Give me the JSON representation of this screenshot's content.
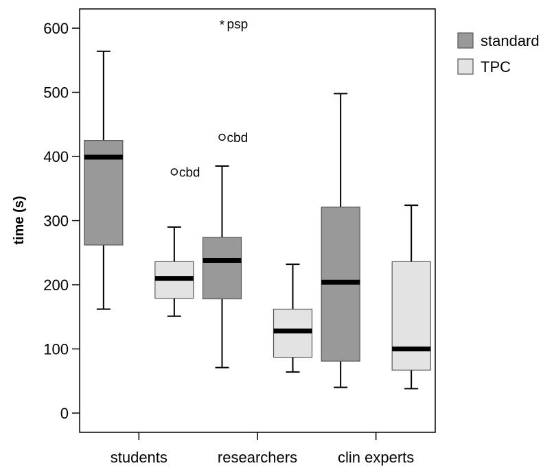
{
  "chart_data": {
    "type": "boxplot",
    "ylabel": "time (s)",
    "ylim": [
      -30,
      630
    ],
    "yticks": [
      0,
      100,
      200,
      300,
      400,
      500,
      600
    ],
    "categories": [
      "students",
      "researchers",
      "clin experts"
    ],
    "legend_position": "right",
    "series": [
      {
        "name": "standard",
        "color": "#999999",
        "boxes": [
          {
            "min": 162,
            "q1": 262,
            "median": 399,
            "q3": 425,
            "max": 564
          },
          {
            "min": 71,
            "q1": 178,
            "median": 238,
            "q3": 274,
            "max": 385
          },
          {
            "min": 40,
            "q1": 81,
            "median": 204,
            "q3": 321,
            "max": 498
          }
        ]
      },
      {
        "name": "TPC",
        "color": "#e3e3e3",
        "boxes": [
          {
            "min": 151,
            "q1": 179,
            "median": 210,
            "q3": 236,
            "max": 290
          },
          {
            "min": 64,
            "q1": 87,
            "median": 128,
            "q3": 162,
            "max": 232
          },
          {
            "min": 38,
            "q1": 67,
            "median": 100,
            "q3": 236,
            "max": 324
          }
        ]
      }
    ],
    "outliers": [
      {
        "category": "students",
        "series": "TPC",
        "y": 376,
        "marker": "circle",
        "label": "cbd"
      },
      {
        "category": "researchers",
        "series": "standard",
        "y": 430,
        "marker": "circle",
        "label": "cbd"
      },
      {
        "category": "researchers",
        "series": "standard",
        "y": 607,
        "marker": "star",
        "label": "psp"
      }
    ]
  }
}
